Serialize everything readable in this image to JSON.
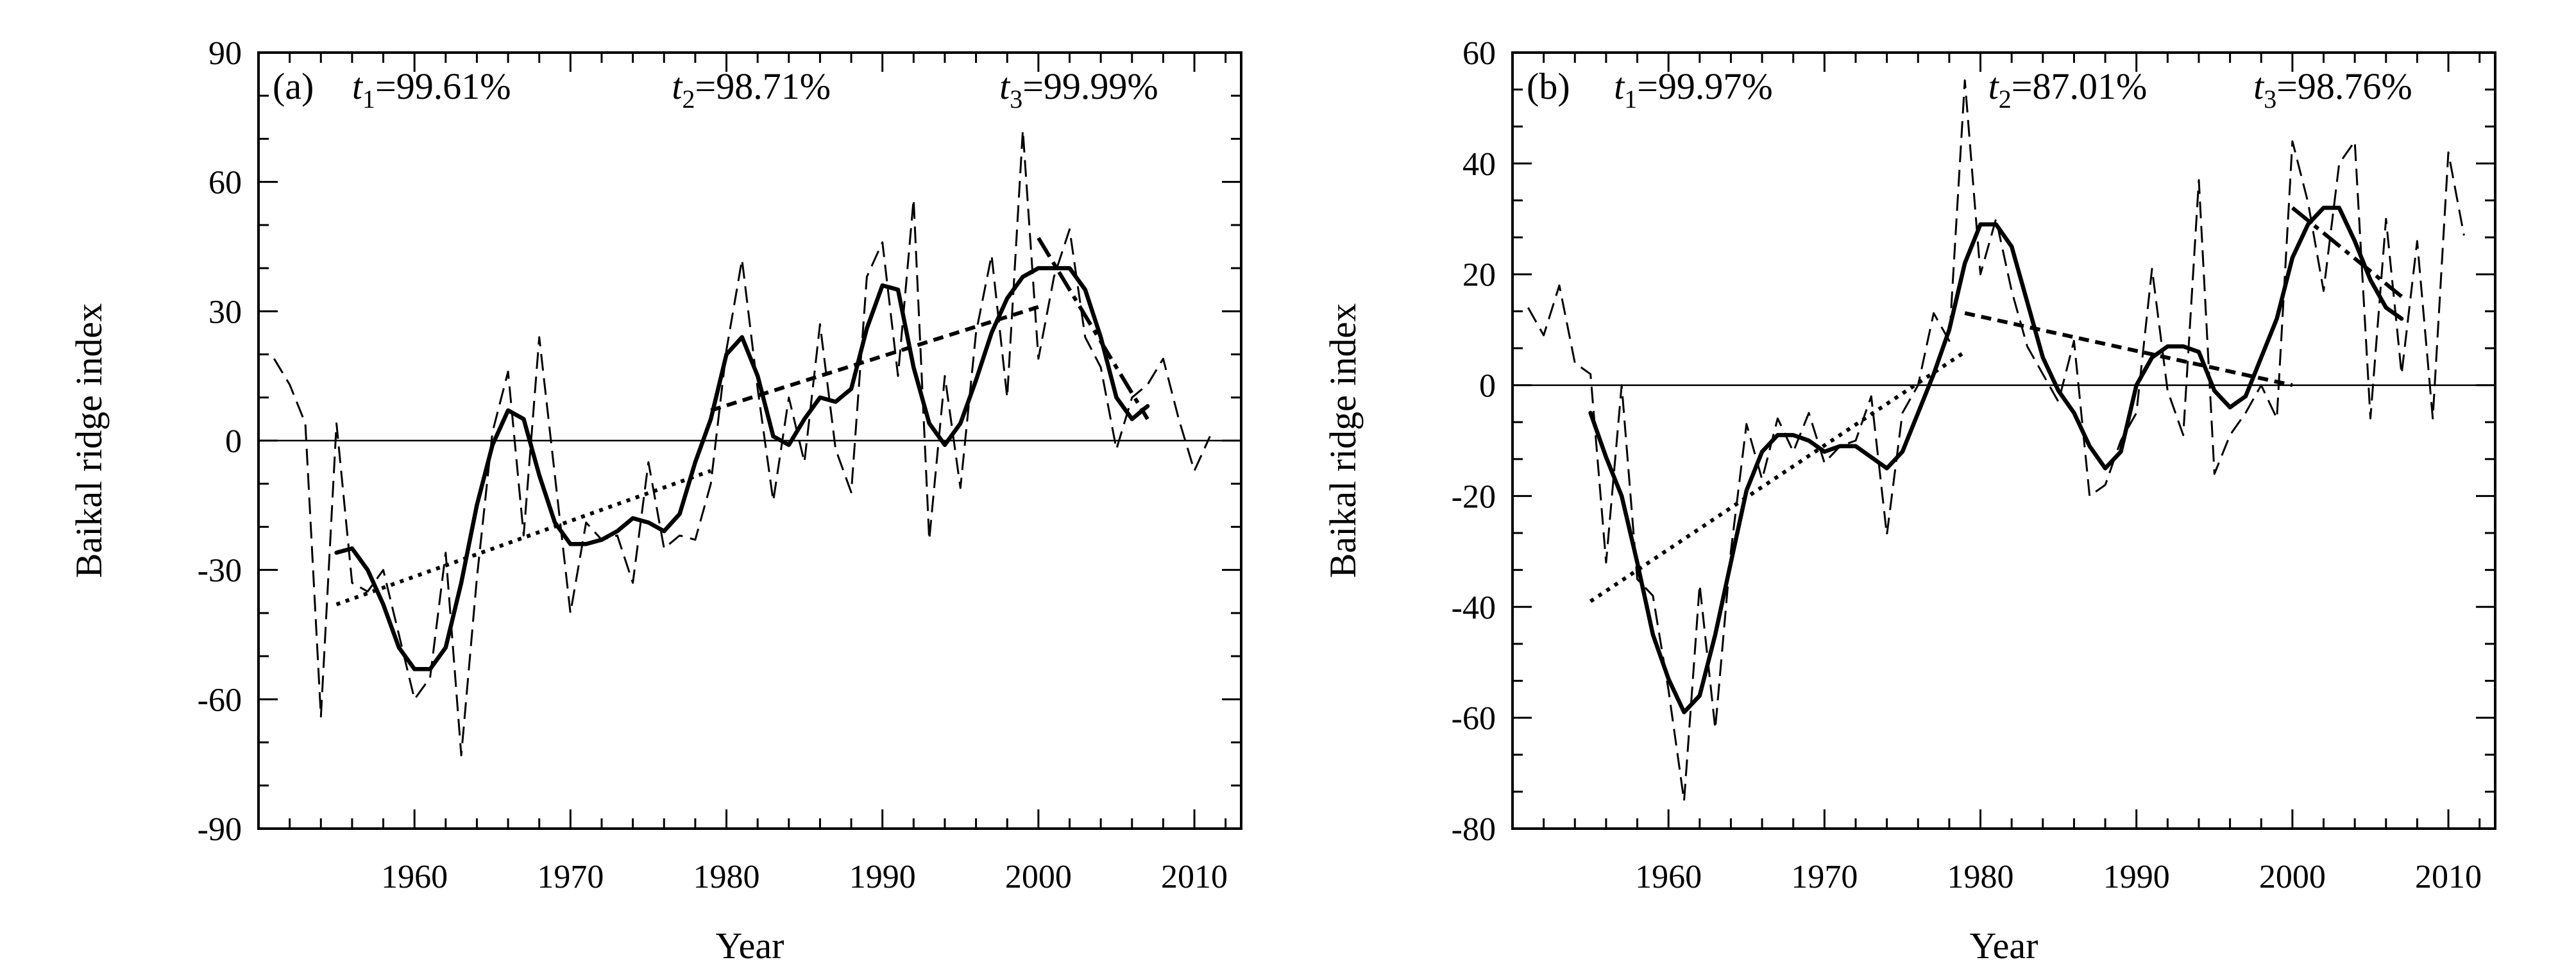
{
  "chart_data": [
    {
      "type": "line",
      "panel_label": "(a)",
      "xlabel": "Year",
      "ylabel": "Baikal ridge index",
      "xlim": [
        1950,
        2013
      ],
      "ylim": [
        -90,
        90
      ],
      "xticks": [
        1960,
        1970,
        1980,
        1990,
        2000,
        2010
      ],
      "yticks": [
        -90,
        -60,
        -30,
        0,
        30,
        60,
        90
      ],
      "annotations": [
        {
          "var": "t",
          "sub": "1",
          "text": "=99.61%",
          "x": 1956.0
        },
        {
          "var": "t",
          "sub": "2",
          "text": "=98.71%",
          "x": 1976.5
        },
        {
          "var": "t",
          "sub": "3",
          "text": "=99.99%",
          "x": 1997.5
        }
      ],
      "series": [
        {
          "style": "thin-dashed",
          "x": [
            1951,
            1952,
            1953,
            1954,
            1955,
            1956,
            1957,
            1958,
            1959,
            1960,
            1961,
            1962,
            1963,
            1964,
            1965,
            1966,
            1967,
            1968,
            1969,
            1970,
            1971,
            1972,
            1973,
            1974,
            1975,
            1976,
            1977,
            1978,
            1979,
            1980,
            1981,
            1982,
            1983,
            1984,
            1985,
            1986,
            1987,
            1988,
            1989,
            1990,
            1991,
            1992,
            1993,
            1994,
            1995,
            1996,
            1997,
            1998,
            1999,
            2000,
            2001,
            2002,
            2003,
            2004,
            2005,
            2006,
            2007,
            2008,
            2009,
            2010,
            2011
          ],
          "values": [
            19,
            13,
            4,
            -64,
            4,
            -33,
            -35,
            -30,
            -45,
            -60,
            -55,
            -26,
            -73,
            -32,
            2,
            16,
            -22,
            24,
            -8,
            -40,
            -19,
            -23,
            -22,
            -33,
            -5,
            -25,
            -22,
            -23,
            -10,
            21,
            42,
            12,
            -14,
            10,
            -5,
            27,
            -2,
            -12,
            38,
            46,
            15,
            56,
            -23,
            15,
            -11,
            25,
            43,
            10,
            72,
            19,
            38,
            49,
            24,
            17,
            -2,
            10,
            13,
            19,
            5,
            -7,
            1
          ]
        },
        {
          "style": "thick-solid",
          "x": [
            1955,
            1956,
            1957,
            1958,
            1959,
            1960,
            1961,
            1962,
            1963,
            1964,
            1965,
            1966,
            1967,
            1968,
            1969,
            1970,
            1971,
            1972,
            1973,
            1974,
            1975,
            1976,
            1977,
            1978,
            1979,
            1980,
            1981,
            1982,
            1983,
            1984,
            1985,
            1986,
            1987,
            1988,
            1989,
            1990,
            1991,
            1992,
            1993,
            1994,
            1995,
            1996,
            1997,
            1998,
            1999,
            2000,
            2001,
            2002,
            2003,
            2004,
            2005,
            2006,
            2007
          ],
          "values": [
            -26,
            -25,
            -30,
            -38,
            -48,
            -53,
            -53,
            -48,
            -33,
            -15,
            -1,
            7,
            5,
            -8,
            -19,
            -24,
            -24,
            -23,
            -21,
            -18,
            -19,
            -21,
            -17,
            -5,
            5,
            20,
            24,
            15,
            1,
            -1,
            5,
            10,
            9,
            12,
            26,
            36,
            35,
            17,
            4,
            -1,
            4,
            14,
            25,
            33,
            38,
            40,
            40,
            40,
            35,
            24,
            10,
            5,
            8
          ]
        },
        {
          "style": "dotted-trend",
          "x": [
            1955,
            1979
          ],
          "values": [
            -38,
            -7
          ]
        },
        {
          "style": "dashed-trend",
          "x": [
            1979,
            2000
          ],
          "values": [
            7,
            31
          ]
        },
        {
          "style": "dashdot-trend",
          "x": [
            2000,
            2007
          ],
          "values": [
            47,
            5
          ]
        }
      ]
    },
    {
      "type": "line",
      "panel_label": "(b)",
      "xlabel": "Year",
      "ylabel": "Baikal ridge index",
      "xlim": [
        1950,
        2013
      ],
      "ylim": [
        -80,
        60
      ],
      "xticks": [
        1960,
        1970,
        1980,
        1990,
        2000,
        2010
      ],
      "yticks": [
        -80,
        -60,
        -40,
        -20,
        0,
        20,
        40,
        60
      ],
      "annotations": [
        {
          "var": "t",
          "sub": "1",
          "text": "=99.97%",
          "x": 1956.5
        },
        {
          "var": "t",
          "sub": "2",
          "text": "=87.01%",
          "x": 1980.5
        },
        {
          "var": "t",
          "sub": "3",
          "text": "=98.76%",
          "x": 1997.5
        }
      ],
      "series": [
        {
          "style": "thin-dashed",
          "x": [
            1951,
            1952,
            1953,
            1954,
            1955,
            1956,
            1957,
            1958,
            1959,
            1960,
            1961,
            1962,
            1963,
            1964,
            1965,
            1966,
            1967,
            1968,
            1969,
            1970,
            1971,
            1972,
            1973,
            1974,
            1975,
            1976,
            1977,
            1978,
            1979,
            1980,
            1981,
            1982,
            1983,
            1984,
            1985,
            1986,
            1987,
            1988,
            1989,
            1990,
            1991,
            1992,
            1993,
            1994,
            1995,
            1996,
            1997,
            1998,
            1999,
            2000,
            2001,
            2002,
            2003,
            2004,
            2005,
            2006,
            2007,
            2008,
            2009,
            2010,
            2011
          ],
          "values": [
            14,
            9,
            18,
            4,
            2,
            -32,
            0,
            -35,
            -38,
            -55,
            -75,
            -36,
            -62,
            -30,
            -7,
            -17,
            -6,
            -12,
            -5,
            -14,
            -11,
            -10,
            -2,
            -27,
            -5,
            0,
            13,
            8,
            55,
            20,
            30,
            17,
            7,
            2,
            -3,
            8,
            -20,
            -18,
            -10,
            -5,
            21,
            -1,
            -9,
            37,
            -16,
            -9,
            -5,
            0,
            -6,
            44,
            33,
            17,
            40,
            44,
            -6,
            30,
            2,
            26,
            -6,
            42,
            27
          ]
        },
        {
          "style": "thick-solid",
          "x": [
            1955,
            1956,
            1957,
            1958,
            1959,
            1960,
            1961,
            1962,
            1963,
            1964,
            1965,
            1966,
            1967,
            1968,
            1969,
            1970,
            1971,
            1972,
            1973,
            1974,
            1975,
            1976,
            1977,
            1978,
            1979,
            1980,
            1981,
            1982,
            1983,
            1984,
            1985,
            1986,
            1987,
            1988,
            1989,
            1990,
            1991,
            1992,
            1993,
            1994,
            1995,
            1996,
            1997,
            1998,
            1999,
            2000,
            2001,
            2002,
            2003,
            2004,
            2005,
            2006,
            2007
          ],
          "values": [
            -5,
            -13,
            -20,
            -32,
            -45,
            -53,
            -59,
            -56,
            -45,
            -32,
            -19,
            -12,
            -9,
            -9,
            -10,
            -12,
            -11,
            -11,
            -13,
            -15,
            -12,
            -5,
            2,
            10,
            22,
            29,
            29,
            25,
            15,
            5,
            -1,
            -5,
            -11,
            -15,
            -12,
            0,
            5,
            7,
            7,
            6,
            -1,
            -4,
            -2,
            5,
            12,
            23,
            29,
            32,
            32,
            26,
            19,
            14,
            12
          ]
        },
        {
          "style": "dotted-trend",
          "x": [
            1955,
            1979
          ],
          "values": [
            -39,
            6
          ]
        },
        {
          "style": "dashed-trend",
          "x": [
            1979,
            2000
          ],
          "values": [
            13,
            0
          ]
        },
        {
          "style": "dashdot-trend",
          "x": [
            2000,
            2007
          ],
          "values": [
            32,
            16
          ]
        }
      ]
    }
  ]
}
